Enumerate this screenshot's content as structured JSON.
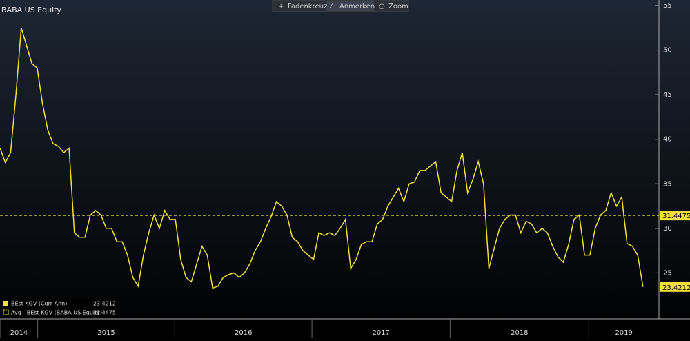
{
  "toolbar": [
    "Fadenkreuz",
    "Anmerken",
    "Zoom"
  ],
  "chart_data": {
    "type": "line",
    "title": "BABA US Equity",
    "series": [
      {
        "name": "BEst KGV (Curr Ann)",
        "color": "#f2e03a",
        "values": [
          39,
          37.4,
          38.5,
          45,
          52.5,
          50.5,
          48.5,
          48,
          44,
          41,
          39.5,
          39.2,
          38.5,
          39,
          29.5,
          29,
          29,
          31.5,
          32,
          31.5,
          30,
          30,
          28.5,
          28.5,
          27,
          24.5,
          23.5,
          27,
          29.5,
          31.5,
          30,
          32,
          31,
          31,
          26.5,
          24.5,
          24,
          26,
          28,
          27,
          23.3,
          23.5,
          24.5,
          24.8,
          25,
          24.5,
          25,
          26,
          27.5,
          28.5,
          30,
          31.3,
          33,
          32.5,
          31.5,
          29,
          28.5,
          27.5,
          27,
          26.5,
          29.5,
          29.2,
          29.5,
          29.2,
          30,
          31,
          25.5,
          26.5,
          28.2,
          28.5,
          28.5,
          30.5,
          31,
          32.5,
          33.5,
          34.5,
          33,
          35,
          35.2,
          36.5,
          36.5,
          37,
          37.5,
          34,
          33.5,
          33,
          36.5,
          38.5,
          34,
          35.5,
          37.5,
          35,
          25.5,
          27.8,
          30,
          31,
          31.5,
          31.5,
          29.5,
          30.8,
          30.5,
          29.5,
          30,
          29.5,
          28,
          26.8,
          26.2,
          28.2,
          31,
          31.5,
          27,
          27,
          30,
          31.5,
          32,
          34,
          32.5,
          33.5,
          28.3,
          28,
          27,
          23.4212
        ]
      }
    ],
    "average": {
      "name": "Avg - BEst KGV (BABA US Equity)",
      "value": 31.4475,
      "color": "#f2e03a"
    },
    "xlim": [
      0,
      124
    ],
    "xticks": [
      {
        "value": 0,
        "label": "2014"
      },
      {
        "value": 7.1,
        "label": "2015"
      },
      {
        "value": 32.9,
        "label": "2016"
      },
      {
        "value": 58.7,
        "label": "2017"
      },
      {
        "value": 84.7,
        "label": "2018"
      },
      {
        "value": 110.8,
        "label": "2019"
      }
    ],
    "ylim": [
      20,
      55.5
    ],
    "yticks": [
      25,
      30,
      35,
      40,
      45,
      50,
      55
    ]
  }
}
